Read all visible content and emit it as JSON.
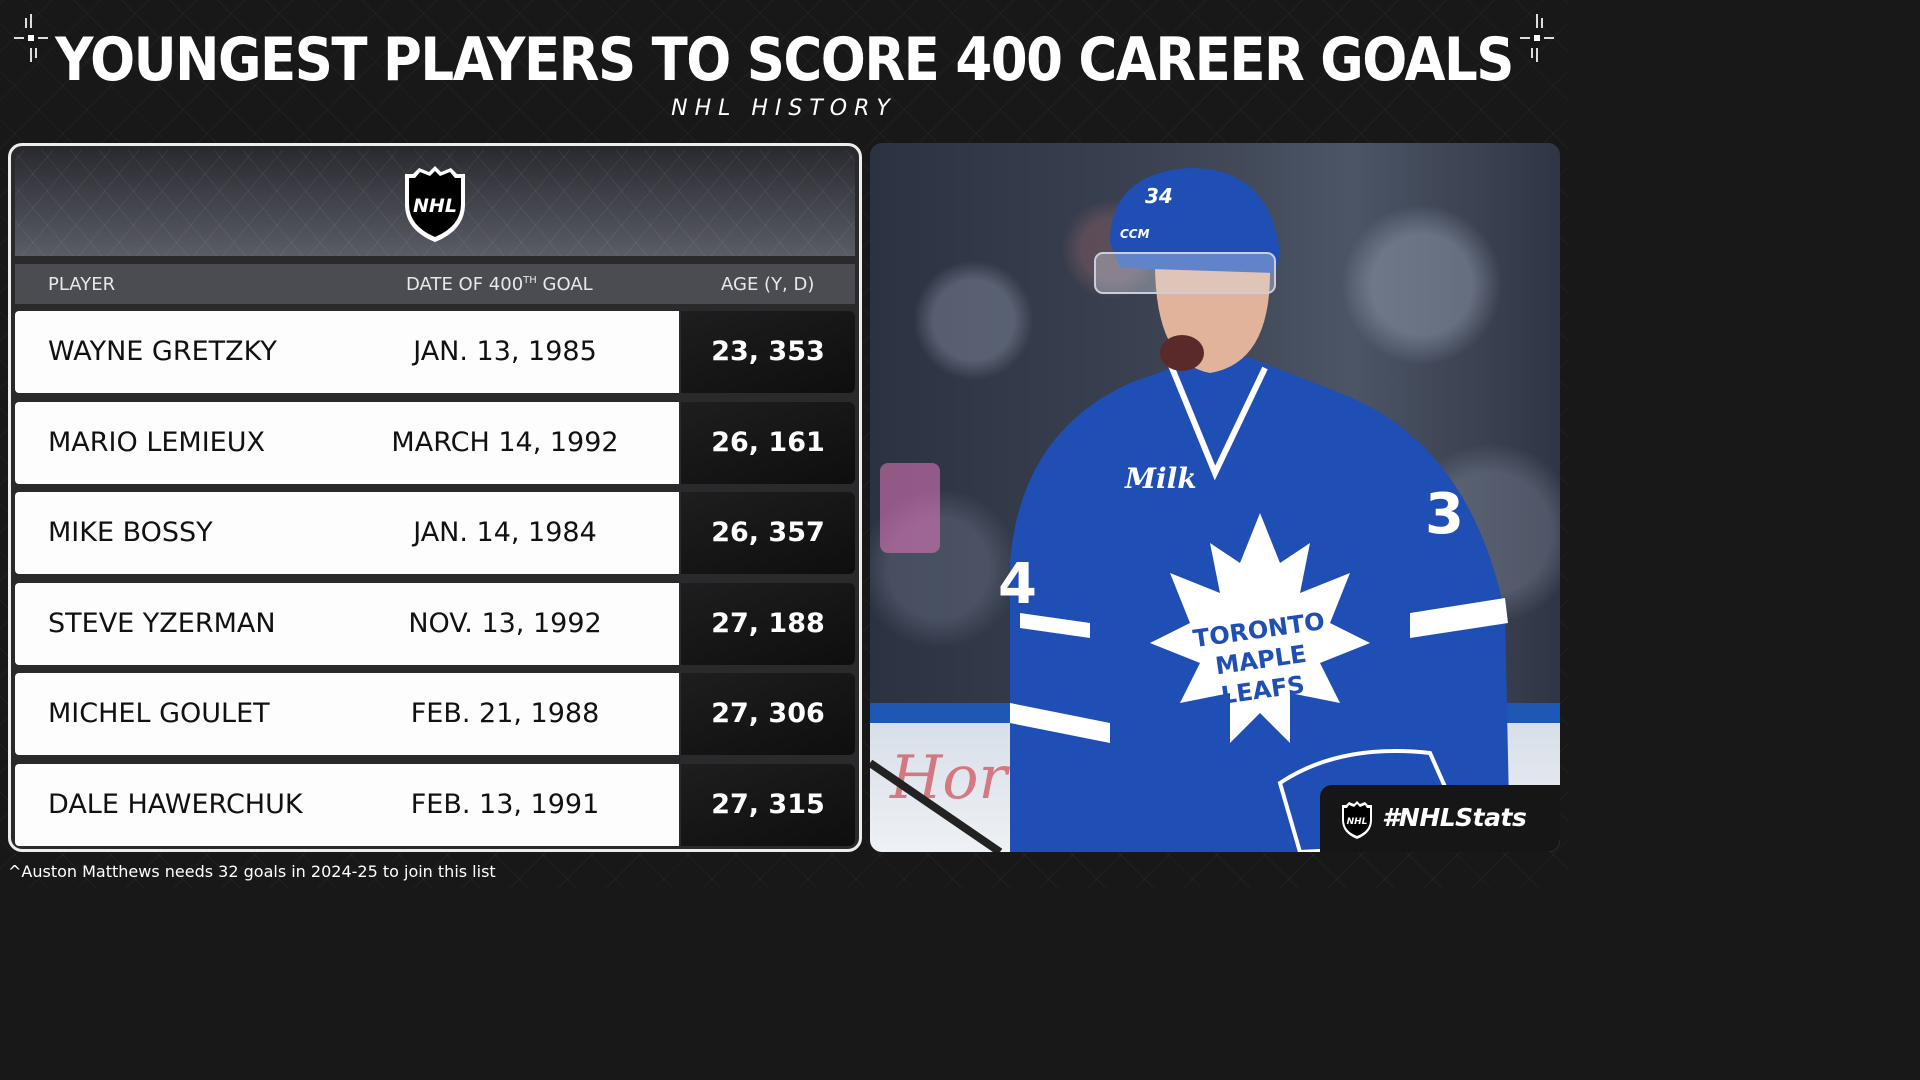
{
  "header": {
    "title": "YOUNGEST PLAYERS TO SCORE 400 CAREER GOALS",
    "subtitle": "NHL HISTORY"
  },
  "table": {
    "logo_icon": "nhl-shield-logo",
    "columns": {
      "player": "PLAYER",
      "date_prefix": "DATE OF 400",
      "date_sup": "TH",
      "date_suffix": " GOAL",
      "age": "AGE (Y, D)"
    },
    "rows": [
      {
        "player": "WAYNE GRETZKY",
        "date": "JAN. 13, 1985",
        "age": "23, 353"
      },
      {
        "player": "MARIO LEMIEUX",
        "date": "MARCH 14, 1992",
        "age": "26, 161"
      },
      {
        "player": "MIKE BOSSY",
        "date": "JAN. 14, 1984",
        "age": "26, 357"
      },
      {
        "player": "STEVE YZERMAN",
        "date": "NOV. 13, 1992",
        "age": "27, 188"
      },
      {
        "player": "MICHEL GOULET",
        "date": "FEB. 21, 1988",
        "age": "27, 306"
      },
      {
        "player": "DALE HAWERCHUK",
        "date": "FEB. 13, 1991",
        "age": "27, 315"
      }
    ]
  },
  "photo": {
    "subject": "toronto-maple-leafs-player-photo",
    "jersey_number": "34",
    "jersey_text": [
      "TORONTO",
      "MAPLE",
      "LEAFS"
    ]
  },
  "badge": {
    "hashtag": "#NHLStats"
  },
  "footnote": "^Auston Matthews needs 32 goals in 2024-25 to join this list",
  "colors": {
    "background": "#181818",
    "leafs_blue": "#1f4fb4",
    "age_cell": "#111111",
    "row_white": "#fdfdfd"
  }
}
